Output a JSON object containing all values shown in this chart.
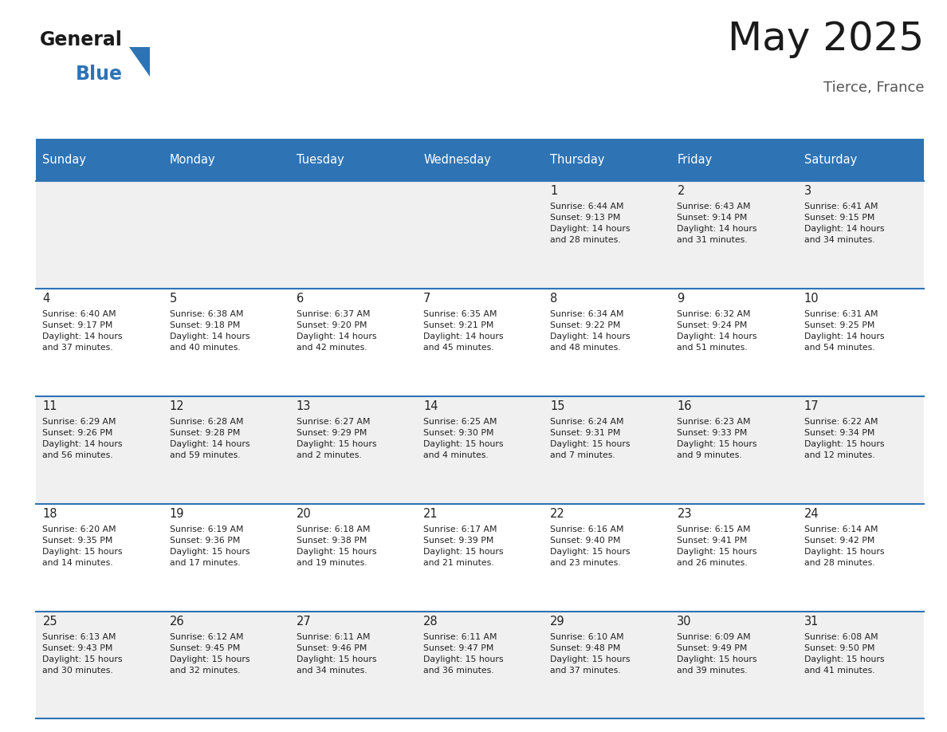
{
  "title": "May 2025",
  "subtitle": "Tierce, France",
  "header_bg": "#2e74b5",
  "header_text_color": "#ffffff",
  "day_names": [
    "Sunday",
    "Monday",
    "Tuesday",
    "Wednesday",
    "Thursday",
    "Friday",
    "Saturday"
  ],
  "row_bg_odd": "#f0f0f0",
  "row_bg_even": "#ffffff",
  "divider_color": "#2e74b5",
  "cell_text_color": "#222222",
  "calendar": [
    [
      {
        "day": "",
        "info": ""
      },
      {
        "day": "",
        "info": ""
      },
      {
        "day": "",
        "info": ""
      },
      {
        "day": "",
        "info": ""
      },
      {
        "day": "1",
        "info": "Sunrise: 6:44 AM\nSunset: 9:13 PM\nDaylight: 14 hours\nand 28 minutes."
      },
      {
        "day": "2",
        "info": "Sunrise: 6:43 AM\nSunset: 9:14 PM\nDaylight: 14 hours\nand 31 minutes."
      },
      {
        "day": "3",
        "info": "Sunrise: 6:41 AM\nSunset: 9:15 PM\nDaylight: 14 hours\nand 34 minutes."
      }
    ],
    [
      {
        "day": "4",
        "info": "Sunrise: 6:40 AM\nSunset: 9:17 PM\nDaylight: 14 hours\nand 37 minutes."
      },
      {
        "day": "5",
        "info": "Sunrise: 6:38 AM\nSunset: 9:18 PM\nDaylight: 14 hours\nand 40 minutes."
      },
      {
        "day": "6",
        "info": "Sunrise: 6:37 AM\nSunset: 9:20 PM\nDaylight: 14 hours\nand 42 minutes."
      },
      {
        "day": "7",
        "info": "Sunrise: 6:35 AM\nSunset: 9:21 PM\nDaylight: 14 hours\nand 45 minutes."
      },
      {
        "day": "8",
        "info": "Sunrise: 6:34 AM\nSunset: 9:22 PM\nDaylight: 14 hours\nand 48 minutes."
      },
      {
        "day": "9",
        "info": "Sunrise: 6:32 AM\nSunset: 9:24 PM\nDaylight: 14 hours\nand 51 minutes."
      },
      {
        "day": "10",
        "info": "Sunrise: 6:31 AM\nSunset: 9:25 PM\nDaylight: 14 hours\nand 54 minutes."
      }
    ],
    [
      {
        "day": "11",
        "info": "Sunrise: 6:29 AM\nSunset: 9:26 PM\nDaylight: 14 hours\nand 56 minutes."
      },
      {
        "day": "12",
        "info": "Sunrise: 6:28 AM\nSunset: 9:28 PM\nDaylight: 14 hours\nand 59 minutes."
      },
      {
        "day": "13",
        "info": "Sunrise: 6:27 AM\nSunset: 9:29 PM\nDaylight: 15 hours\nand 2 minutes."
      },
      {
        "day": "14",
        "info": "Sunrise: 6:25 AM\nSunset: 9:30 PM\nDaylight: 15 hours\nand 4 minutes."
      },
      {
        "day": "15",
        "info": "Sunrise: 6:24 AM\nSunset: 9:31 PM\nDaylight: 15 hours\nand 7 minutes."
      },
      {
        "day": "16",
        "info": "Sunrise: 6:23 AM\nSunset: 9:33 PM\nDaylight: 15 hours\nand 9 minutes."
      },
      {
        "day": "17",
        "info": "Sunrise: 6:22 AM\nSunset: 9:34 PM\nDaylight: 15 hours\nand 12 minutes."
      }
    ],
    [
      {
        "day": "18",
        "info": "Sunrise: 6:20 AM\nSunset: 9:35 PM\nDaylight: 15 hours\nand 14 minutes."
      },
      {
        "day": "19",
        "info": "Sunrise: 6:19 AM\nSunset: 9:36 PM\nDaylight: 15 hours\nand 17 minutes."
      },
      {
        "day": "20",
        "info": "Sunrise: 6:18 AM\nSunset: 9:38 PM\nDaylight: 15 hours\nand 19 minutes."
      },
      {
        "day": "21",
        "info": "Sunrise: 6:17 AM\nSunset: 9:39 PM\nDaylight: 15 hours\nand 21 minutes."
      },
      {
        "day": "22",
        "info": "Sunrise: 6:16 AM\nSunset: 9:40 PM\nDaylight: 15 hours\nand 23 minutes."
      },
      {
        "day": "23",
        "info": "Sunrise: 6:15 AM\nSunset: 9:41 PM\nDaylight: 15 hours\nand 26 minutes."
      },
      {
        "day": "24",
        "info": "Sunrise: 6:14 AM\nSunset: 9:42 PM\nDaylight: 15 hours\nand 28 minutes."
      }
    ],
    [
      {
        "day": "25",
        "info": "Sunrise: 6:13 AM\nSunset: 9:43 PM\nDaylight: 15 hours\nand 30 minutes."
      },
      {
        "day": "26",
        "info": "Sunrise: 6:12 AM\nSunset: 9:45 PM\nDaylight: 15 hours\nand 32 minutes."
      },
      {
        "day": "27",
        "info": "Sunrise: 6:11 AM\nSunset: 9:46 PM\nDaylight: 15 hours\nand 34 minutes."
      },
      {
        "day": "28",
        "info": "Sunrise: 6:11 AM\nSunset: 9:47 PM\nDaylight: 15 hours\nand 36 minutes."
      },
      {
        "day": "29",
        "info": "Sunrise: 6:10 AM\nSunset: 9:48 PM\nDaylight: 15 hours\nand 37 minutes."
      },
      {
        "day": "30",
        "info": "Sunrise: 6:09 AM\nSunset: 9:49 PM\nDaylight: 15 hours\nand 39 minutes."
      },
      {
        "day": "31",
        "info": "Sunrise: 6:08 AM\nSunset: 9:50 PM\nDaylight: 15 hours\nand 41 minutes."
      }
    ]
  ],
  "logo_general_color": "#1a1a1a",
  "logo_blue_color": "#2e74b5",
  "figwidth": 11.88,
  "figheight": 9.18,
  "dpi": 100
}
